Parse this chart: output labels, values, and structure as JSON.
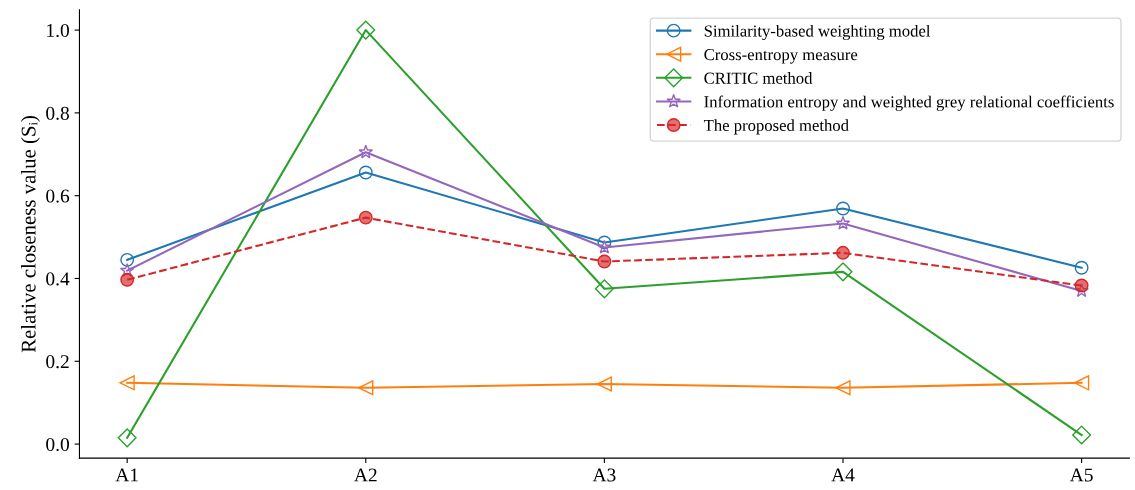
{
  "chart_data": {
    "type": "line",
    "ylabel": "Relative closeness value (Sᵢ)",
    "categories": [
      "A1",
      "A2",
      "A3",
      "A4",
      "A5"
    ],
    "series": [
      {
        "name": "Similarity-based weighting model",
        "color": "#1f77b4",
        "marker": "circle",
        "line_style": "solid",
        "values": [
          0.445,
          0.656,
          0.487,
          0.569,
          0.426
        ]
      },
      {
        "name": "Cross-entropy measure",
        "color": "#ff7f0e",
        "marker": "triangle",
        "line_style": "solid",
        "values": [
          0.148,
          0.136,
          0.145,
          0.136,
          0.148
        ]
      },
      {
        "name": "CRITIC method",
        "color": "#2ca02c",
        "marker": "diamond",
        "line_style": "solid",
        "values": [
          0.015,
          1.0,
          0.375,
          0.416,
          0.022
        ]
      },
      {
        "name": "Information entropy and weighted grey relational coefficients",
        "color": "#9467bd",
        "marker": "star",
        "line_style": "solid",
        "values": [
          0.419,
          0.705,
          0.475,
          0.533,
          0.37
        ]
      },
      {
        "name": "The proposed method",
        "color": "#d62728",
        "marker": "circle",
        "line_style": "dashed",
        "values": [
          0.397,
          0.547,
          0.441,
          0.462,
          0.383
        ]
      }
    ],
    "ylim": [
      -0.034,
      1.049
    ],
    "yticks": [
      {
        "value": 0,
        "label": "0.0"
      },
      0.2,
      0.4,
      0.6,
      0.8,
      {
        "value": 1,
        "label": "1.0"
      }
    ],
    "grid": false,
    "legend": "top right"
  }
}
